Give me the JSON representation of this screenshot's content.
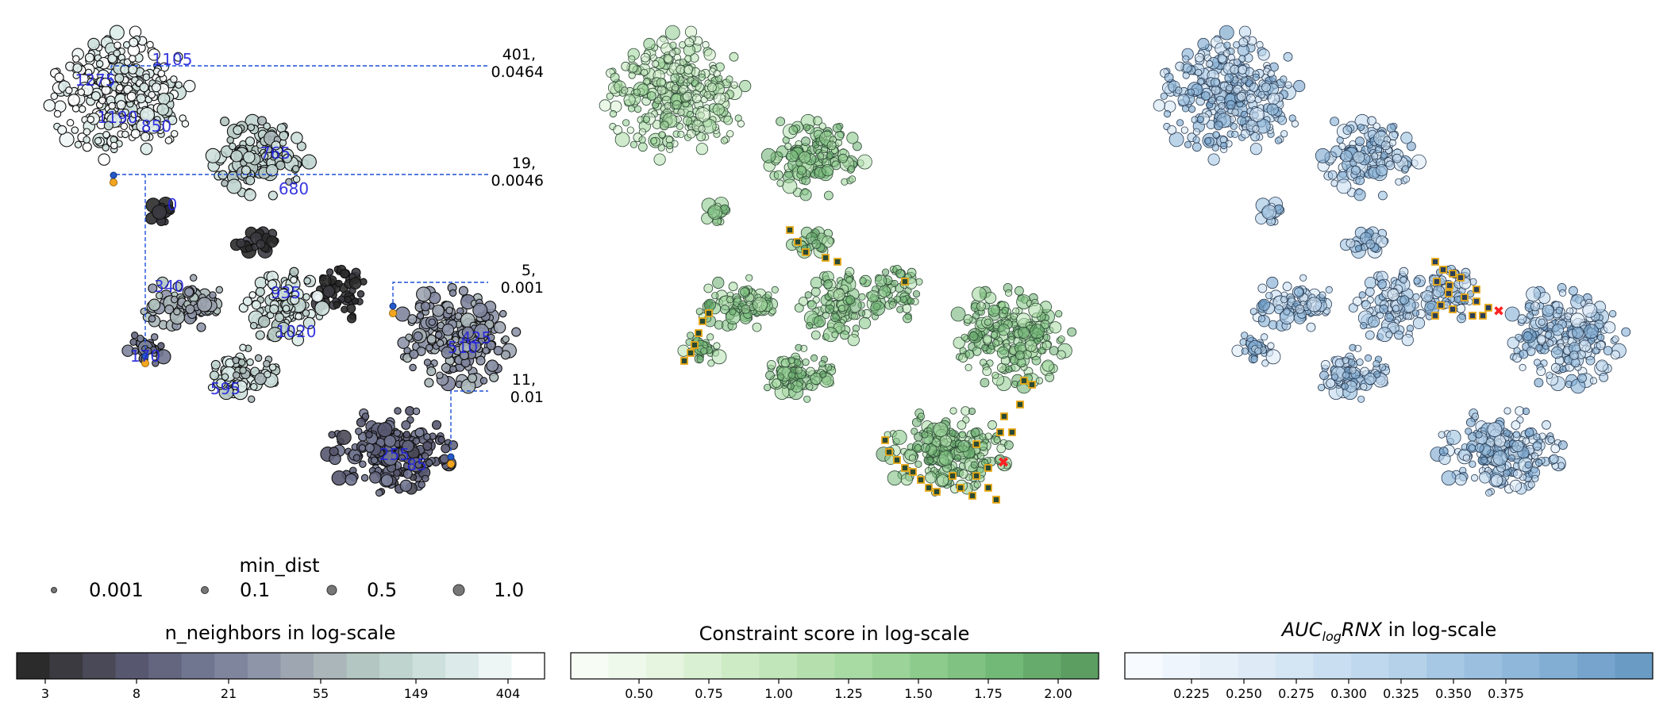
{
  "chart_data": [
    {
      "type": "scatter",
      "panel": "n_neighbors",
      "colorbar": {
        "title": "n_neighbors in log-scale",
        "ticks": [
          "3",
          "8",
          "21",
          "55",
          "149",
          "404"
        ],
        "colors": [
          "#2b2b2b",
          "#3b3a41",
          "#4a4957",
          "#575870",
          "#646680",
          "#717690",
          "#7f859d",
          "#8e95a8",
          "#9ea6b2",
          "#aab6b9",
          "#b4c6c1",
          "#c0d4cf",
          "#cde0dc",
          "#dcebe9",
          "#eef6f5",
          "#ffffff"
        ]
      },
      "legend": {
        "title": "min_dist",
        "entries": [
          "0.001",
          "0.1",
          "0.5",
          "1.0"
        ],
        "placement": "below"
      },
      "point_labels": [
        "1105",
        "1275",
        "1190",
        "850",
        "765",
        "680",
        "0",
        "340",
        "935",
        "1020",
        "170",
        "595",
        "255",
        "85",
        "510",
        "425"
      ],
      "annotations": [
        {
          "line1": "401,",
          "line2": "0.0464"
        },
        {
          "line1": "19,",
          "line2": "0.0046"
        },
        {
          "line1": "5,",
          "line2": "0.001"
        },
        {
          "line1": "11,",
          "line2": "0.01"
        }
      ]
    },
    {
      "type": "scatter",
      "panel": "constraint",
      "colorbar": {
        "title": "Constraint score in log-scale",
        "ticks": [
          "0.50",
          "0.75",
          "1.00",
          "1.25",
          "1.50",
          "1.75",
          "2.00"
        ],
        "colors": [
          "#f7fcf5",
          "#eef8eb",
          "#e5f5e0",
          "#d9f0d3",
          "#cdebc5",
          "#c1e6ba",
          "#b5e0ae",
          "#a8daa3",
          "#9bd398",
          "#8dcb8c",
          "#80c281",
          "#72b977",
          "#66ab6c",
          "#5c9e62"
        ]
      }
    },
    {
      "type": "scatter",
      "panel": "auc",
      "colorbar": {
        "title_main": "AUC",
        "title_sub": "log",
        "title_rest": "RNX in log-scale",
        "ticks": [
          "0.225",
          "0.250",
          "0.275",
          "0.300",
          "0.325",
          "0.350",
          "0.375"
        ],
        "colors": [
          "#f7fbff",
          "#eef5fc",
          "#e6f0f9",
          "#deebf7",
          "#d4e5f4",
          "#cadef1",
          "#bfd8ed",
          "#b4d1e9",
          "#a7c8e4",
          "#9bc0df",
          "#8fb7d9",
          "#82aed3",
          "#76a4cc",
          "#6a9bc5"
        ]
      }
    }
  ]
}
